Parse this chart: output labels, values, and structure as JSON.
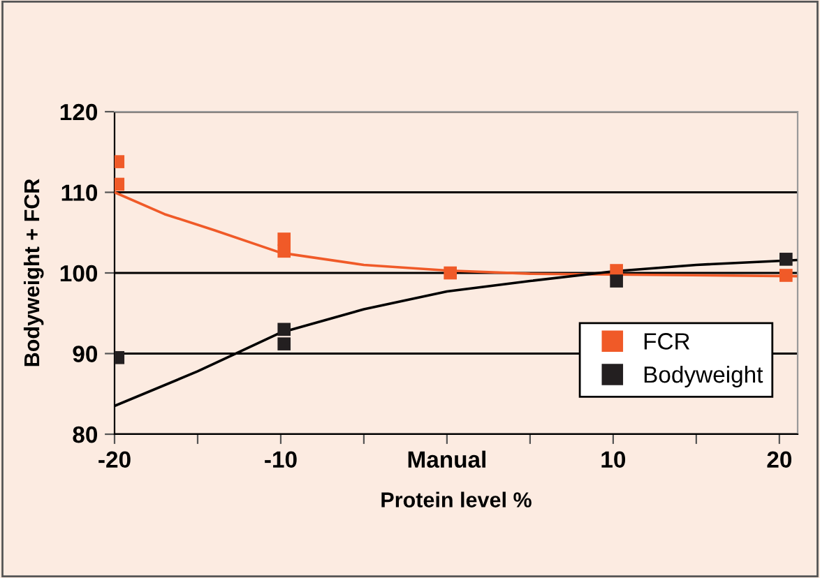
{
  "chart_data": {
    "type": "scatter",
    "xlabel": "Protein level %",
    "ylabel": "Bodyweight + FCR",
    "xlim": [
      -20,
      21.1
    ],
    "ylim": [
      80,
      120
    ],
    "xticks": [
      -20,
      {
        "value": -15,
        "label": null
      },
      -10,
      {
        "value": -5,
        "label": null
      },
      {
        "value": 0,
        "label": "Manual"
      },
      {
        "value": 5,
        "label": null
      },
      10,
      {
        "value": 15,
        "label": null
      },
      20
    ],
    "yticks": [
      80,
      90,
      100,
      110,
      120
    ],
    "grid": "y",
    "legend": "bottom right",
    "marker": "square",
    "series": [
      {
        "type": "line",
        "color": "#f05a28",
        "marker": "none",
        "x": [
          -20,
          -17,
          -14,
          -10,
          -5,
          0,
          5,
          10,
          21
        ],
        "values": [
          110,
          107.3,
          105.3,
          102.5,
          101.0,
          100.3,
          99.9,
          99.8,
          99.6
        ]
      },
      {
        "type": "line",
        "color": "#000000",
        "marker": "none",
        "x": [
          -20,
          -15,
          -10,
          -5,
          0,
          5,
          10,
          15,
          21
        ],
        "values": [
          83.5,
          87.8,
          92.6,
          95.5,
          97.7,
          99.0,
          100.2,
          101.0,
          101.6
        ]
      },
      {
        "name": "FCR",
        "color": "#f05a28",
        "x": [
          -19.8,
          -19.8,
          -9.8,
          -9.8,
          0.2,
          10.2,
          20.4
        ],
        "values": [
          113.8,
          111,
          104.2,
          102.7,
          100,
          100.3,
          99.7
        ]
      },
      {
        "name": "Bodyweight",
        "color": "#231f20",
        "x": [
          -19.8,
          -9.8,
          -9.8,
          10.2,
          20.4
        ],
        "values": [
          89.5,
          93,
          91.2,
          99,
          101.7
        ]
      }
    ]
  }
}
